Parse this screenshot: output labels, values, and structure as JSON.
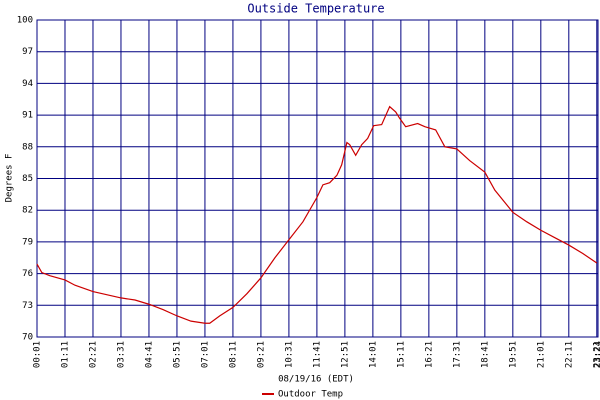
{
  "chart_data": {
    "type": "line",
    "title": "Outside Temperature",
    "x_label": "08/19/16 (EDT)",
    "y_label": "Degrees F",
    "xlim": [
      1,
      1404
    ],
    "ylim": [
      70,
      100
    ],
    "xticks": [
      {
        "value": 1,
        "label": "00:01"
      },
      {
        "value": 71,
        "label": "01:11"
      },
      {
        "value": 141,
        "label": "02:21"
      },
      {
        "value": 211,
        "label": "03:31"
      },
      {
        "value": 281,
        "label": "04:41"
      },
      {
        "value": 351,
        "label": "05:51"
      },
      {
        "value": 421,
        "label": "07:01"
      },
      {
        "value": 491,
        "label": "08:11"
      },
      {
        "value": 561,
        "label": "09:21"
      },
      {
        "value": 631,
        "label": "10:31"
      },
      {
        "value": 701,
        "label": "11:41"
      },
      {
        "value": 771,
        "label": "12:51"
      },
      {
        "value": 841,
        "label": "14:01"
      },
      {
        "value": 911,
        "label": "15:11"
      },
      {
        "value": 981,
        "label": "16:21"
      },
      {
        "value": 1051,
        "label": "17:31"
      },
      {
        "value": 1121,
        "label": "18:41"
      },
      {
        "value": 1191,
        "label": "19:51"
      },
      {
        "value": 1261,
        "label": "21:01"
      },
      {
        "value": 1331,
        "label": "22:11"
      },
      {
        "value": 1401,
        "label": "23:21"
      },
      {
        "value": 1404,
        "label": "23:24"
      }
    ],
    "yticks": [
      70,
      73,
      76,
      79,
      82,
      85,
      88,
      91,
      94,
      97,
      100
    ],
    "grid": true,
    "grid_color": "#000080",
    "legend": "bottom",
    "x": [
      1,
      13,
      33,
      71,
      96,
      141,
      211,
      246,
      281,
      316,
      351,
      386,
      421,
      433,
      458,
      491,
      526,
      561,
      596,
      631,
      666,
      701,
      716,
      733,
      751,
      763,
      776,
      783,
      798,
      813,
      828,
      843,
      863,
      883,
      898,
      908,
      923,
      953,
      971,
      998,
      1021,
      1051,
      1083,
      1121,
      1146,
      1191,
      1226,
      1261,
      1296,
      1331,
      1366,
      1401
    ],
    "series": [
      {
        "name": "Outdoor Temp",
        "color": "#cc0000",
        "values": [
          76.9,
          76.1,
          75.8,
          75.4,
          74.9,
          74.3,
          73.7,
          73.5,
          73.1,
          72.6,
          72.0,
          71.5,
          71.3,
          71.3,
          72.0,
          72.8,
          74.1,
          75.6,
          77.5,
          79.2,
          80.9,
          83.2,
          84.4,
          84.6,
          85.3,
          86.3,
          88.4,
          88.2,
          87.2,
          88.2,
          88.8,
          90.0,
          90.1,
          91.8,
          91.3,
          90.7,
          89.9,
          90.2,
          89.9,
          89.6,
          88.0,
          87.8,
          86.7,
          85.6,
          83.9,
          81.8,
          80.9,
          80.1,
          79.4,
          78.7,
          77.9,
          77.0
        ]
      }
    ]
  }
}
